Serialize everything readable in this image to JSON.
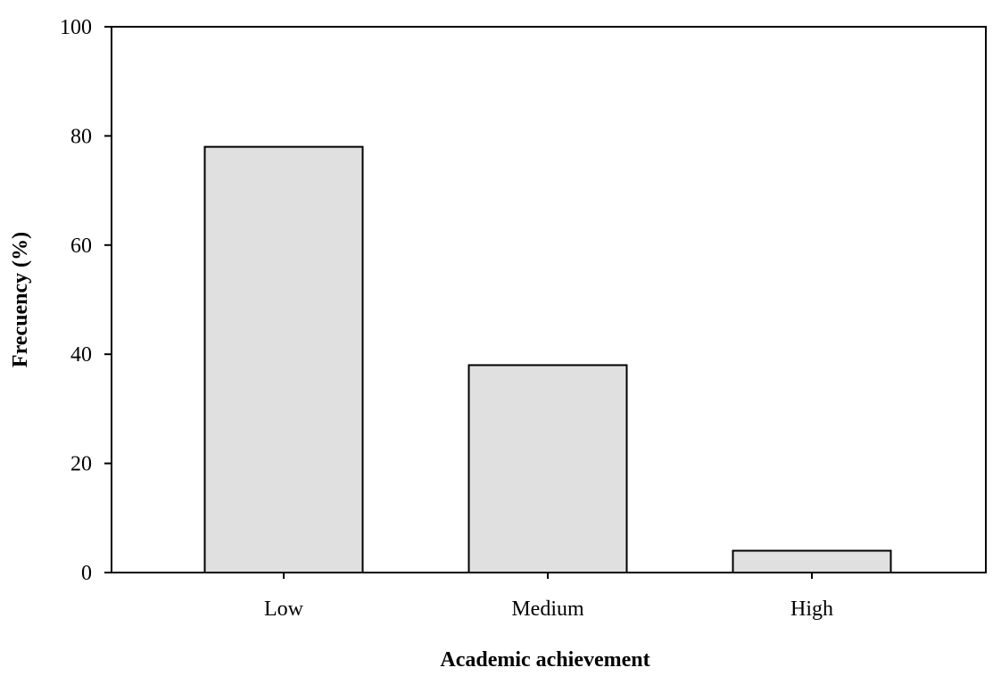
{
  "chart_data": {
    "type": "bar",
    "categories": [
      "Low",
      "Medium",
      "High"
    ],
    "values": [
      78,
      38,
      4
    ],
    "xlabel": "Academic achievement",
    "ylabel": "Frecuency (%)",
    "ylim": [
      0,
      100
    ],
    "yticks": [
      0,
      20,
      40,
      60,
      80,
      100
    ],
    "grid": false,
    "legend": "none",
    "colors": {
      "bar_fill": "#e0e0e0",
      "bar_stroke": "#000000",
      "axis": "#000000"
    }
  }
}
